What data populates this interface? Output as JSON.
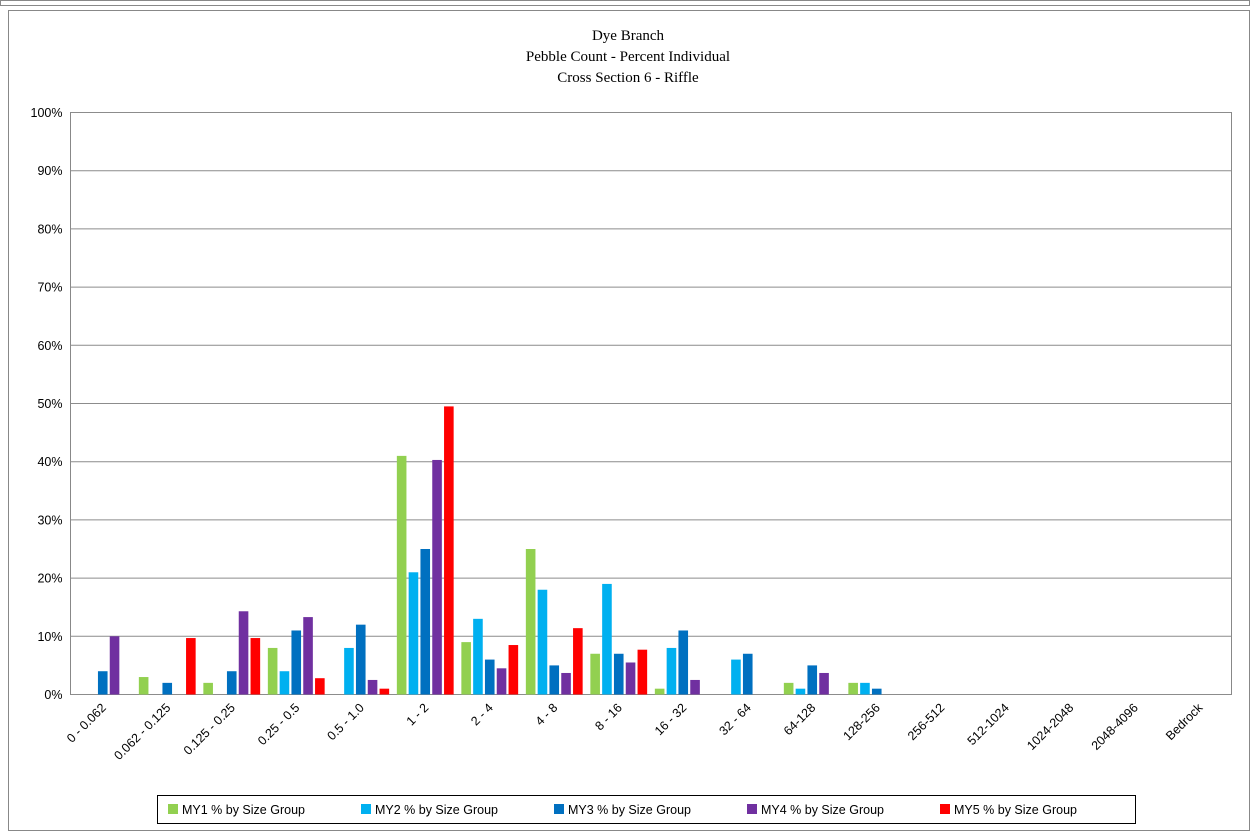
{
  "chart_data": {
    "type": "bar",
    "title": [
      "Dye Branch",
      "Pebble Count - Percent Individual",
      "Cross Section 6 - Riffle"
    ],
    "xlabel": "",
    "ylabel": "",
    "ylim": [
      0,
      100
    ],
    "y_tick_labels": [
      "0%",
      "10%",
      "20%",
      "30%",
      "40%",
      "50%",
      "60%",
      "70%",
      "80%",
      "90%",
      "100%"
    ],
    "grid": "horizontal",
    "legend_position": "bottom",
    "categories": [
      "0 - 0.062",
      "0.062 - 0.125",
      "0.125 - 0.25",
      "0.25 - 0.5",
      "0.5 - 1.0",
      "1 - 2",
      "2 - 4",
      "4 - 8",
      "8 - 16",
      "16 - 32",
      "32 - 64",
      "64-128",
      "128-256",
      "256-512",
      "512-1024",
      "1024-2048",
      "2048-4096",
      "Bedrock"
    ],
    "series": [
      {
        "name": "MY1 % by Size Group",
        "color": "#92d050",
        "values": [
          0,
          3,
          2,
          8,
          0,
          41,
          9,
          25,
          7,
          1,
          0,
          2,
          2,
          0,
          0,
          0,
          0,
          0
        ]
      },
      {
        "name": "MY2 % by Size Group",
        "color": "#00b0f0",
        "values": [
          0,
          0,
          0,
          4,
          8,
          21,
          13,
          18,
          19,
          8,
          6,
          1,
          2,
          0,
          0,
          0,
          0,
          0
        ]
      },
      {
        "name": "MY3 % by Size Group",
        "color": "#0070c0",
        "values": [
          4,
          2,
          4,
          11,
          12,
          25,
          6,
          5,
          7,
          11,
          7,
          5,
          1,
          0,
          0,
          0,
          0,
          0
        ]
      },
      {
        "name": "MY4 % by Size Group",
        "color": "#7030a0",
        "values": [
          10,
          0,
          14.3,
          13.3,
          2.5,
          40.3,
          4.5,
          3.7,
          5.5,
          2.5,
          0,
          3.7,
          0,
          0,
          0,
          0,
          0,
          0
        ]
      },
      {
        "name": "MY5 % by Size Group",
        "color": "#ff0000",
        "values": [
          0,
          9.7,
          9.7,
          2.8,
          1,
          49.5,
          8.5,
          11.4,
          7.7,
          0,
          0,
          0,
          0,
          0,
          0,
          0,
          0,
          0
        ]
      }
    ]
  }
}
